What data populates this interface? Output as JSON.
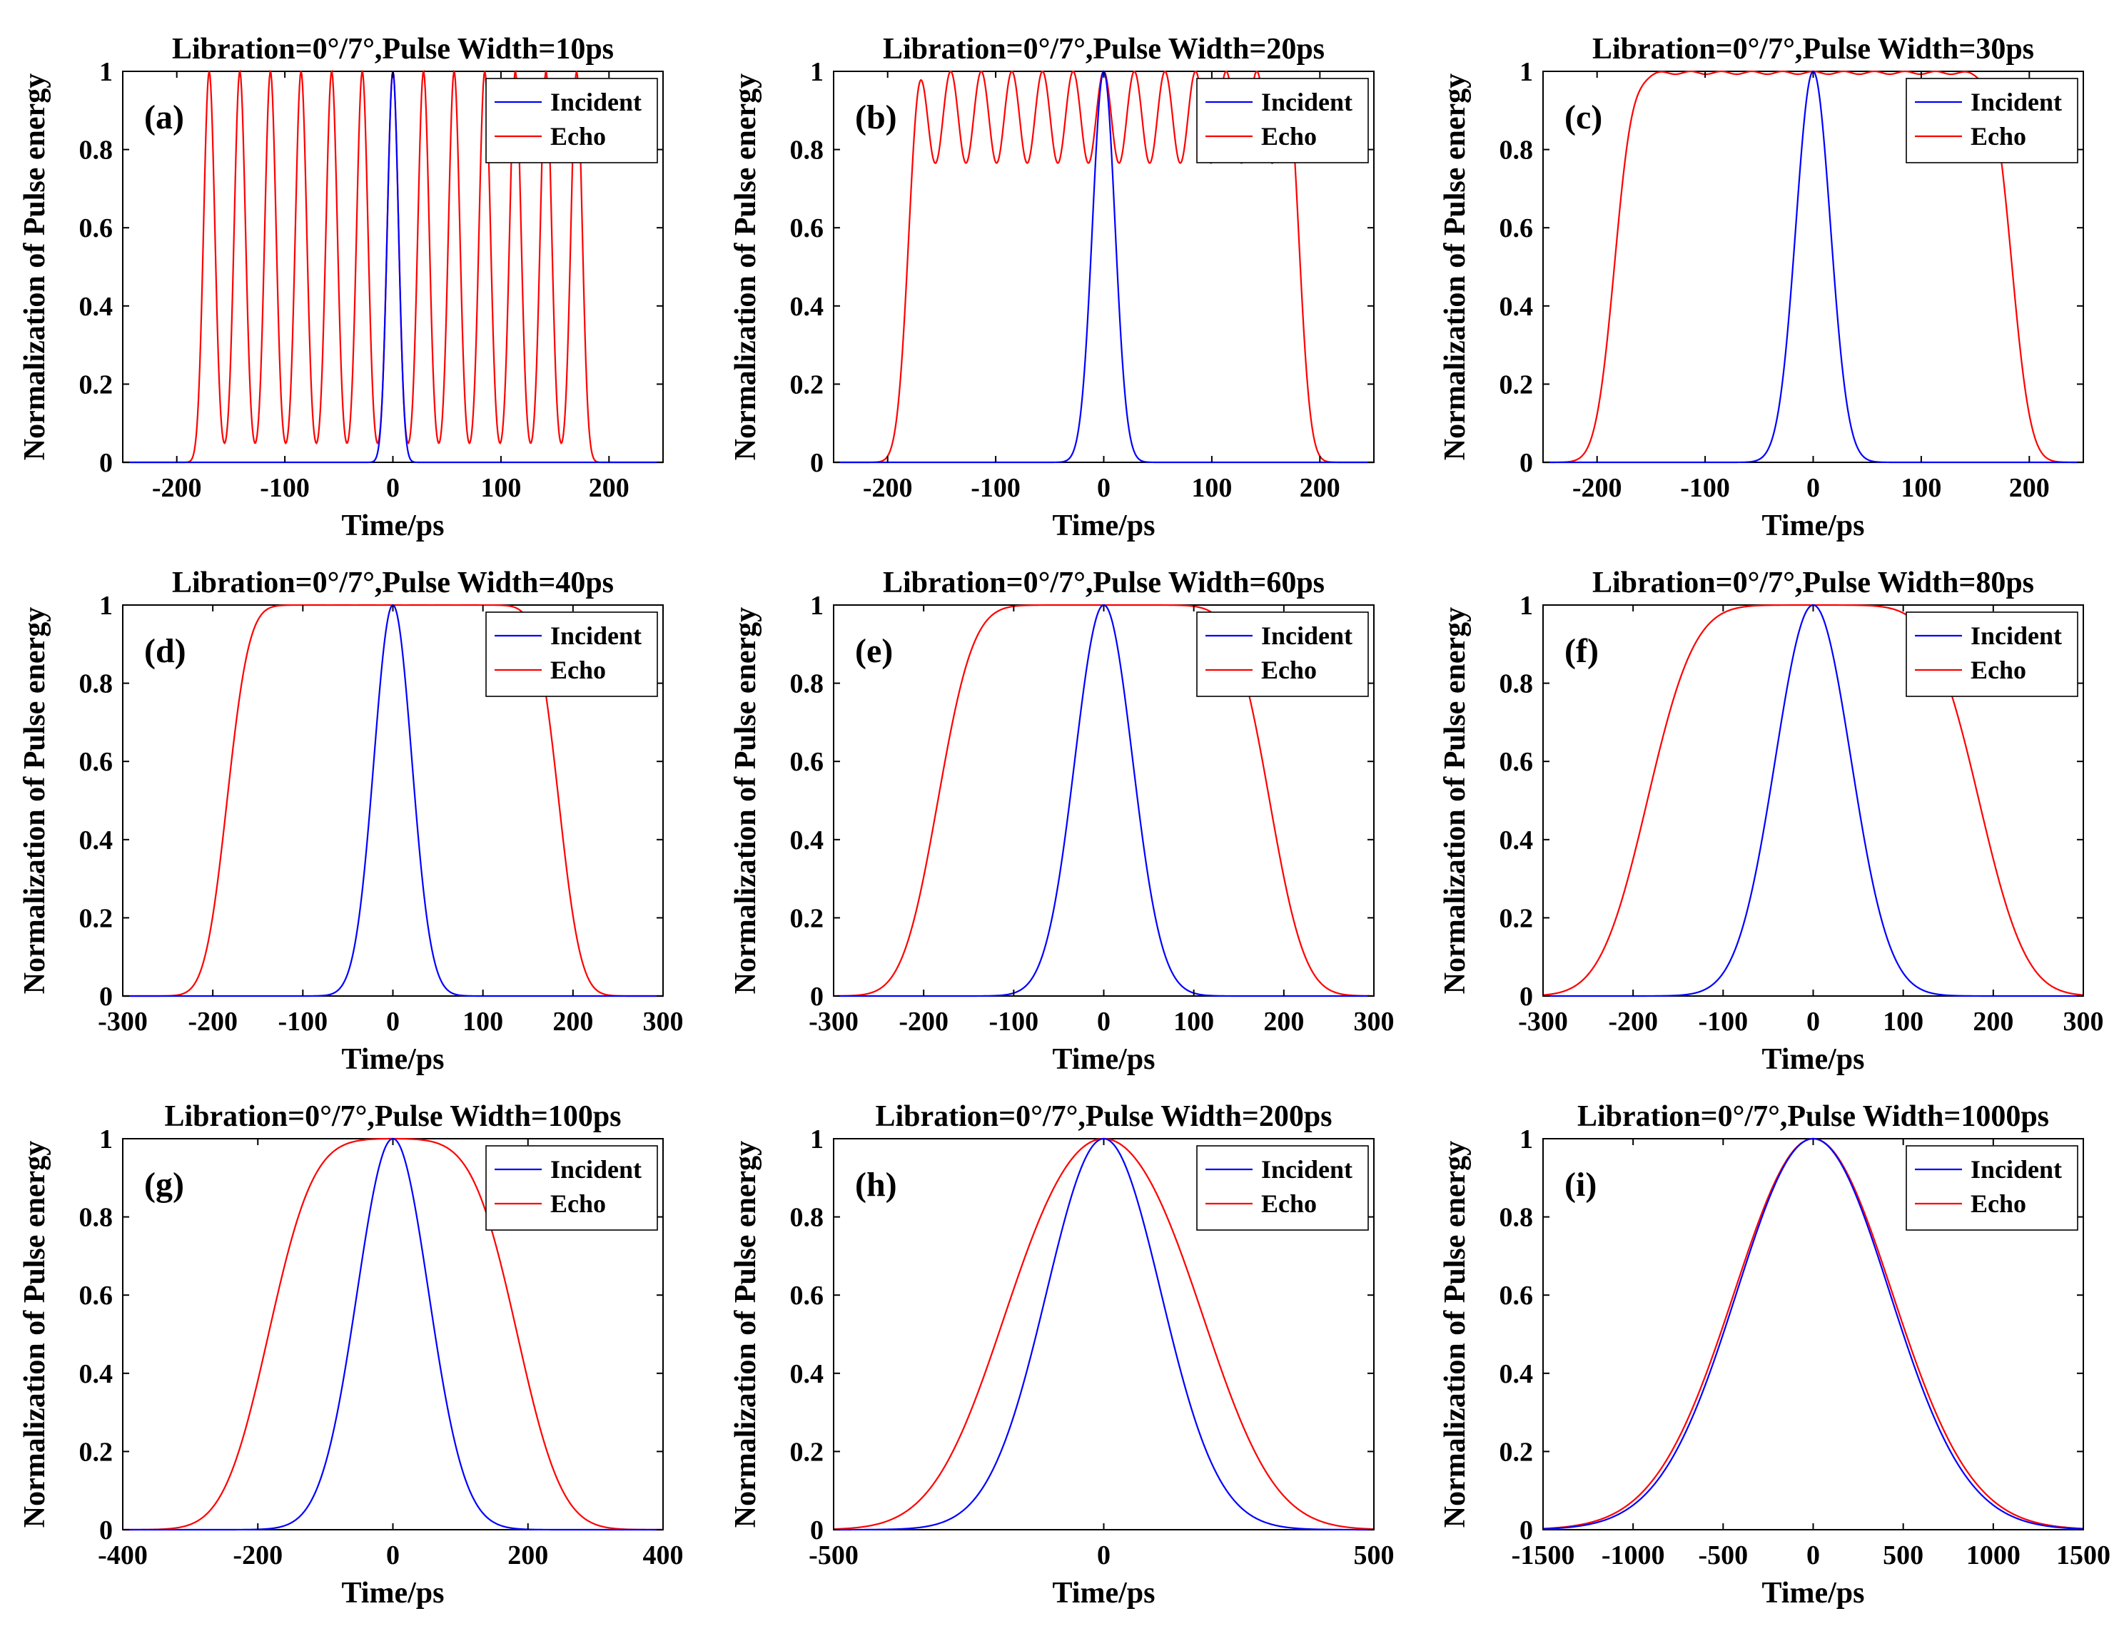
{
  "figure": {
    "series_names": [
      "Incident",
      "Echo"
    ],
    "colors": {
      "incident": "#0000ff",
      "echo": "#ff0000",
      "axes": "#000000",
      "legend_border": "#000000"
    }
  },
  "chart_data": [
    {
      "id": "a",
      "type": "line",
      "panel_label": "(a)",
      "title": "Libration=0°/7°,Pulse Width=10ps",
      "xlabel": "Time/ps",
      "ylabel": "Normalization of Pulse energy",
      "xlim": [
        -250,
        250
      ],
      "ylim": [
        0,
        1
      ],
      "xticks": [
        -200,
        -100,
        0,
        100,
        200
      ],
      "xtick_labels": [
        "-200",
        "-100",
        "0",
        "100",
        "200"
      ],
      "yticks": [
        0,
        0.2,
        0.4,
        0.6,
        0.8,
        1
      ],
      "ytick_labels": [
        "0",
        "0.2",
        "0.4",
        "0.6",
        "0.8",
        "1"
      ],
      "legend": {
        "position": "top-right",
        "entries": [
          "Incident",
          "Echo"
        ]
      },
      "series": [
        {
          "name": "Incident",
          "model": {
            "kind": "gaussian",
            "center": 0,
            "sigma": 5.2
          }
        },
        {
          "name": "Echo",
          "model": {
            "kind": "pulse_train",
            "start": -170,
            "end": 170,
            "sigma": 5.2,
            "count": 13
          }
        }
      ]
    },
    {
      "id": "b",
      "type": "line",
      "panel_label": "(b)",
      "title": "Libration=0°/7°,Pulse Width=20ps",
      "xlabel": "Time/ps",
      "ylabel": "Normalization of Pulse energy",
      "xlim": [
        -250,
        250
      ],
      "ylim": [
        0,
        1
      ],
      "xticks": [
        -200,
        -100,
        0,
        100,
        200
      ],
      "xtick_labels": [
        "-200",
        "-100",
        "0",
        "100",
        "200"
      ],
      "yticks": [
        0,
        0.2,
        0.4,
        0.6,
        0.8,
        1
      ],
      "ytick_labels": [
        "0",
        "0.2",
        "0.4",
        "0.6",
        "0.8",
        "1"
      ],
      "legend": {
        "position": "top-right",
        "entries": [
          "Incident",
          "Echo"
        ]
      },
      "series": [
        {
          "name": "Incident",
          "model": {
            "kind": "gaussian",
            "center": 0,
            "sigma": 10.5
          }
        },
        {
          "name": "Echo",
          "model": {
            "kind": "pulse_train",
            "start": -170,
            "end": 170,
            "sigma": 10.5,
            "count": 13
          }
        }
      ]
    },
    {
      "id": "c",
      "type": "line",
      "panel_label": "(c)",
      "title": "Libration=0°/7°,Pulse Width=30ps",
      "xlabel": "Time/ps",
      "ylabel": "Normalization of Pulse energy",
      "xlim": [
        -250,
        250
      ],
      "ylim": [
        0,
        1
      ],
      "xticks": [
        -200,
        -100,
        0,
        100,
        200
      ],
      "xtick_labels": [
        "-200",
        "-100",
        "0",
        "100",
        "200"
      ],
      "yticks": [
        0,
        0.2,
        0.4,
        0.6,
        0.8,
        1
      ],
      "ytick_labels": [
        "0",
        "0.2",
        "0.4",
        "0.6",
        "0.8",
        "1"
      ],
      "legend": {
        "position": "top-right",
        "entries": [
          "Incident",
          "Echo"
        ]
      },
      "series": [
        {
          "name": "Incident",
          "model": {
            "kind": "gaussian",
            "center": 0,
            "sigma": 16
          }
        },
        {
          "name": "Echo",
          "model": {
            "kind": "pulse_train",
            "start": -170,
            "end": 170,
            "sigma": 16,
            "count": 13
          }
        }
      ]
    },
    {
      "id": "d",
      "type": "line",
      "panel_label": "(d)",
      "title": "Libration=0°/7°,Pulse Width=40ps",
      "xlabel": "Time/ps",
      "ylabel": "Normalization of Pulse energy",
      "xlim": [
        -300,
        300
      ],
      "ylim": [
        0,
        1
      ],
      "xticks": [
        -300,
        -200,
        -100,
        0,
        100,
        200,
        300
      ],
      "xtick_labels": [
        "-300",
        "-200",
        "-100",
        "0",
        "100",
        "200",
        "300"
      ],
      "yticks": [
        0,
        0.2,
        0.4,
        0.6,
        0.8,
        1
      ],
      "ytick_labels": [
        "0",
        "0.2",
        "0.4",
        "0.6",
        "0.8",
        "1"
      ],
      "legend": {
        "position": "top-right",
        "entries": [
          "Incident",
          "Echo"
        ]
      },
      "series": [
        {
          "name": "Incident",
          "model": {
            "kind": "gaussian",
            "center": 0,
            "sigma": 21
          }
        },
        {
          "name": "Echo",
          "model": {
            "kind": "pulse_train",
            "start": -170,
            "end": 170,
            "sigma": 21,
            "count": 13
          }
        }
      ]
    },
    {
      "id": "e",
      "type": "line",
      "panel_label": "(e)",
      "title": "Libration=0°/7°,Pulse Width=60ps",
      "xlabel": "Time/ps",
      "ylabel": "Normalization of Pulse energy",
      "xlim": [
        -300,
        300
      ],
      "ylim": [
        0,
        1
      ],
      "xticks": [
        -300,
        -200,
        -100,
        0,
        100,
        200,
        300
      ],
      "xtick_labels": [
        "-300",
        "-200",
        "-100",
        "0",
        "100",
        "200",
        "300"
      ],
      "yticks": [
        0,
        0.2,
        0.4,
        0.6,
        0.8,
        1
      ],
      "ytick_labels": [
        "0",
        "0.2",
        "0.4",
        "0.6",
        "0.8",
        "1"
      ],
      "legend": {
        "position": "top-right",
        "entries": [
          "Incident",
          "Echo"
        ]
      },
      "series": [
        {
          "name": "Incident",
          "model": {
            "kind": "gaussian",
            "center": 0,
            "sigma": 32
          }
        },
        {
          "name": "Echo",
          "model": {
            "kind": "pulse_train",
            "start": -170,
            "end": 170,
            "sigma": 32,
            "count": 13
          }
        }
      ]
    },
    {
      "id": "f",
      "type": "line",
      "panel_label": "(f)",
      "title": "Libration=0°/7°,Pulse Width=80ps",
      "xlabel": "Time/ps",
      "ylabel": "Normalization of Pulse energy",
      "xlim": [
        -300,
        300
      ],
      "ylim": [
        0,
        1
      ],
      "xticks": [
        -300,
        -200,
        -100,
        0,
        100,
        200,
        300
      ],
      "xtick_labels": [
        "-300",
        "-200",
        "-100",
        "0",
        "100",
        "200",
        "300"
      ],
      "yticks": [
        0,
        0.2,
        0.4,
        0.6,
        0.8,
        1
      ],
      "ytick_labels": [
        "0",
        "0.2",
        "0.4",
        "0.6",
        "0.8",
        "1"
      ],
      "legend": {
        "position": "top-right",
        "entries": [
          "Incident",
          "Echo"
        ]
      },
      "series": [
        {
          "name": "Incident",
          "model": {
            "kind": "gaussian",
            "center": 0,
            "sigma": 42
          }
        },
        {
          "name": "Echo",
          "model": {
            "kind": "pulse_train",
            "start": -170,
            "end": 170,
            "sigma": 42,
            "count": 13
          }
        }
      ]
    },
    {
      "id": "g",
      "type": "line",
      "panel_label": "(g)",
      "title": "Libration=0°/7°,Pulse Width=100ps",
      "xlabel": "Time/ps",
      "ylabel": "Normalization of Pulse energy",
      "xlim": [
        -400,
        400
      ],
      "ylim": [
        0,
        1
      ],
      "xticks": [
        -400,
        -200,
        0,
        200,
        400
      ],
      "xtick_labels": [
        "-400",
        "-200",
        "0",
        "200",
        "400"
      ],
      "yticks": [
        0,
        0.2,
        0.4,
        0.6,
        0.8,
        1
      ],
      "ytick_labels": [
        "0",
        "0.2",
        "0.4",
        "0.6",
        "0.8",
        "1"
      ],
      "legend": {
        "position": "top-right",
        "entries": [
          "Incident",
          "Echo"
        ]
      },
      "series": [
        {
          "name": "Incident",
          "model": {
            "kind": "gaussian",
            "center": 0,
            "sigma": 53
          }
        },
        {
          "name": "Echo",
          "model": {
            "kind": "pulse_train",
            "start": -170,
            "end": 170,
            "sigma": 53,
            "count": 13
          }
        }
      ]
    },
    {
      "id": "h",
      "type": "line",
      "panel_label": "(h)",
      "title": "Libration=0°/7°,Pulse Width=200ps",
      "xlabel": "Time/ps",
      "ylabel": "Normalization of Pulse energy",
      "xlim": [
        -500,
        500
      ],
      "ylim": [
        0,
        1
      ],
      "xticks": [
        -500,
        0,
        500
      ],
      "xtick_labels": [
        "-500",
        "0",
        "500"
      ],
      "yticks": [
        0,
        0.2,
        0.4,
        0.6,
        0.8,
        1
      ],
      "ytick_labels": [
        "0",
        "0.2",
        "0.4",
        "0.6",
        "0.8",
        "1"
      ],
      "legend": {
        "position": "top-right",
        "entries": [
          "Incident",
          "Echo"
        ]
      },
      "series": [
        {
          "name": "Incident",
          "model": {
            "kind": "gaussian",
            "center": 0,
            "sigma": 106
          }
        },
        {
          "name": "Echo",
          "model": {
            "kind": "pulse_train",
            "start": -170,
            "end": 170,
            "sigma": 106,
            "count": 13
          }
        }
      ]
    },
    {
      "id": "i",
      "type": "line",
      "panel_label": "(i)",
      "title": "Libration=0°/7°,Pulse Width=1000ps",
      "xlabel": "Time/ps",
      "ylabel": "Normalization of Pulse energy",
      "xlim": [
        -1500,
        1500
      ],
      "ylim": [
        0,
        1
      ],
      "xticks": [
        -1500,
        -1000,
        -500,
        0,
        500,
        1000,
        1500
      ],
      "xtick_labels": [
        "-1500",
        "-1000",
        "-500",
        "0",
        "500",
        "1000",
        "1500"
      ],
      "yticks": [
        0,
        0.2,
        0.4,
        0.6,
        0.8,
        1
      ],
      "ytick_labels": [
        "0",
        "0.2",
        "0.4",
        "0.6",
        "0.8",
        "1"
      ],
      "legend": {
        "position": "top-right",
        "entries": [
          "Incident",
          "Echo"
        ]
      },
      "series": [
        {
          "name": "Incident",
          "model": {
            "kind": "gaussian",
            "center": 0,
            "sigma": 425
          }
        },
        {
          "name": "Echo",
          "model": {
            "kind": "pulse_train",
            "start": -170,
            "end": 170,
            "sigma": 425,
            "count": 13
          }
        }
      ]
    }
  ]
}
